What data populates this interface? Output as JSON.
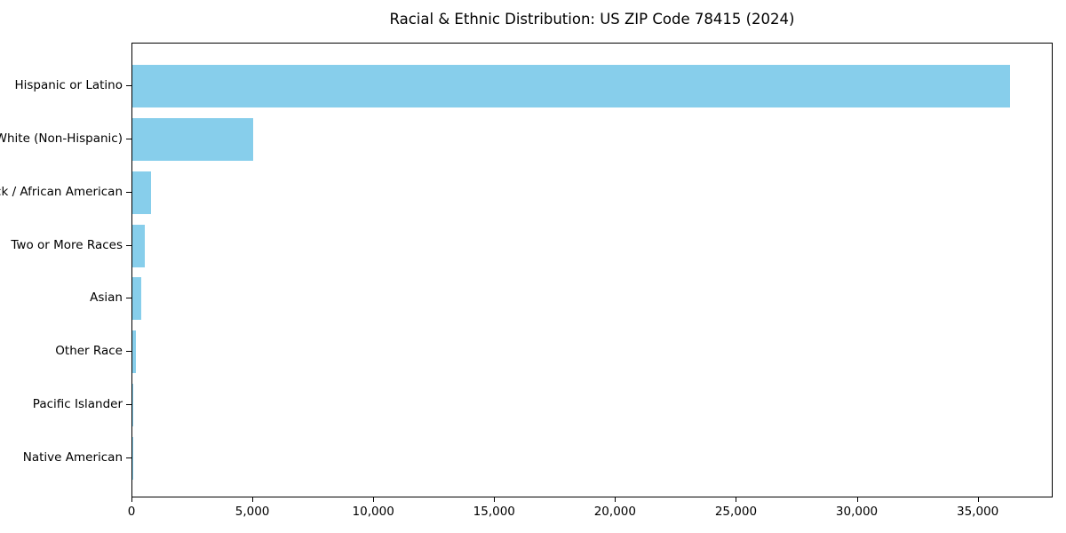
{
  "chart_data": {
    "type": "bar",
    "orientation": "horizontal",
    "title": "Racial & Ethnic Distribution: US ZIP Code 78415 (2024)",
    "categories": [
      "Hispanic or Latino",
      "White (Non-Hispanic)",
      "Black / African American",
      "Two or More Races",
      "Asian",
      "Other Race",
      "Pacific Islander",
      "Native American"
    ],
    "values": [
      36300,
      5000,
      780,
      510,
      380,
      130,
      45,
      35
    ],
    "xlabel": "",
    "ylabel": "",
    "xlim": [
      0,
      38100
    ],
    "x_ticks": [
      0,
      5000,
      10000,
      15000,
      20000,
      25000,
      30000,
      35000
    ],
    "x_tick_labels": [
      "0",
      "5,000",
      "10,000",
      "15,000",
      "20,000",
      "25,000",
      "30,000",
      "35,000"
    ],
    "bar_color": "#87CEEB",
    "axis_color": "#000000",
    "background_color": "#ffffff",
    "grid": false,
    "legend": null,
    "sort_order": "descending"
  }
}
